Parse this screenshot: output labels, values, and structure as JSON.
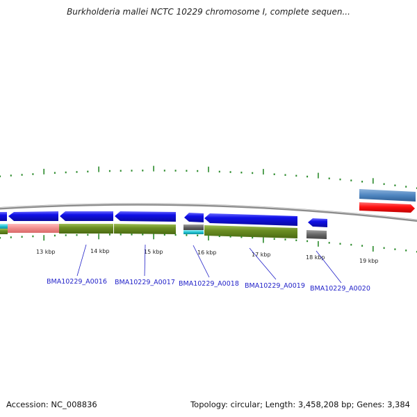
{
  "title": "Burkholderia mallei NCTC 10229 chromosome I, complete sequen...",
  "footer": {
    "accession": "Accession: NC_008836",
    "summary": "Topology: circular; Length: 3,458,208 bp; Genes: 3,384"
  },
  "scale": {
    "ticks": [
      "13 kbp",
      "14 kbp",
      "15 kbp",
      "16 kbp",
      "17 kbp",
      "18 kbp",
      "19 kbp"
    ]
  },
  "genes": [
    {
      "label": "BMA10229_A0016"
    },
    {
      "label": "BMA10229_A0017"
    },
    {
      "label": "BMA10229_A0018"
    },
    {
      "label": "BMA10229_A0019"
    },
    {
      "label": "BMA10229_A0020"
    }
  ],
  "colors": {
    "cds": "#1010e8",
    "gene": "#6b8e23",
    "pseudo": "#f08c8c",
    "rna": "#ff1010",
    "repeat": "#4f86c0",
    "misc": "#666666",
    "cyan": "#22c4d4",
    "tick": "#2a8a2a",
    "backbone": "#8c8c8c"
  }
}
